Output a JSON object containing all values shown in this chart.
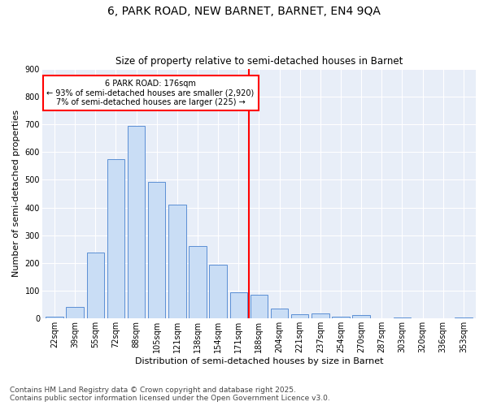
{
  "title1": "6, PARK ROAD, NEW BARNET, BARNET, EN4 9QA",
  "title2": "Size of property relative to semi-detached houses in Barnet",
  "xlabel": "Distribution of semi-detached houses by size in Barnet",
  "ylabel": "Number of semi-detached properties",
  "categories": [
    "22sqm",
    "39sqm",
    "55sqm",
    "72sqm",
    "88sqm",
    "105sqm",
    "121sqm",
    "138sqm",
    "154sqm",
    "171sqm",
    "188sqm",
    "204sqm",
    "221sqm",
    "237sqm",
    "254sqm",
    "270sqm",
    "287sqm",
    "303sqm",
    "320sqm",
    "336sqm",
    "353sqm"
  ],
  "values": [
    8,
    42,
    237,
    575,
    693,
    492,
    410,
    262,
    195,
    93,
    85,
    37,
    15,
    18,
    7,
    13,
    0,
    5,
    0,
    0,
    4
  ],
  "bar_color": "#c9ddf5",
  "bar_edge_color": "#5b8fd4",
  "vline_x_index": 9.5,
  "annotation_title": "6 PARK ROAD: 176sqm",
  "annotation_line1": "← 93% of semi-detached houses are smaller (2,920)",
  "annotation_line2": "7% of semi-detached houses are larger (225) →",
  "ylim": [
    0,
    900
  ],
  "yticks": [
    0,
    100,
    200,
    300,
    400,
    500,
    600,
    700,
    800,
    900
  ],
  "footnote1": "Contains HM Land Registry data © Crown copyright and database right 2025.",
  "footnote2": "Contains public sector information licensed under the Open Government Licence v3.0.",
  "bg_color": "#e8eef8",
  "grid_color": "#ffffff",
  "title1_fontsize": 10,
  "title2_fontsize": 8.5,
  "ylabel_fontsize": 8,
  "xlabel_fontsize": 8,
  "tick_fontsize": 7,
  "footnote_fontsize": 6.5
}
